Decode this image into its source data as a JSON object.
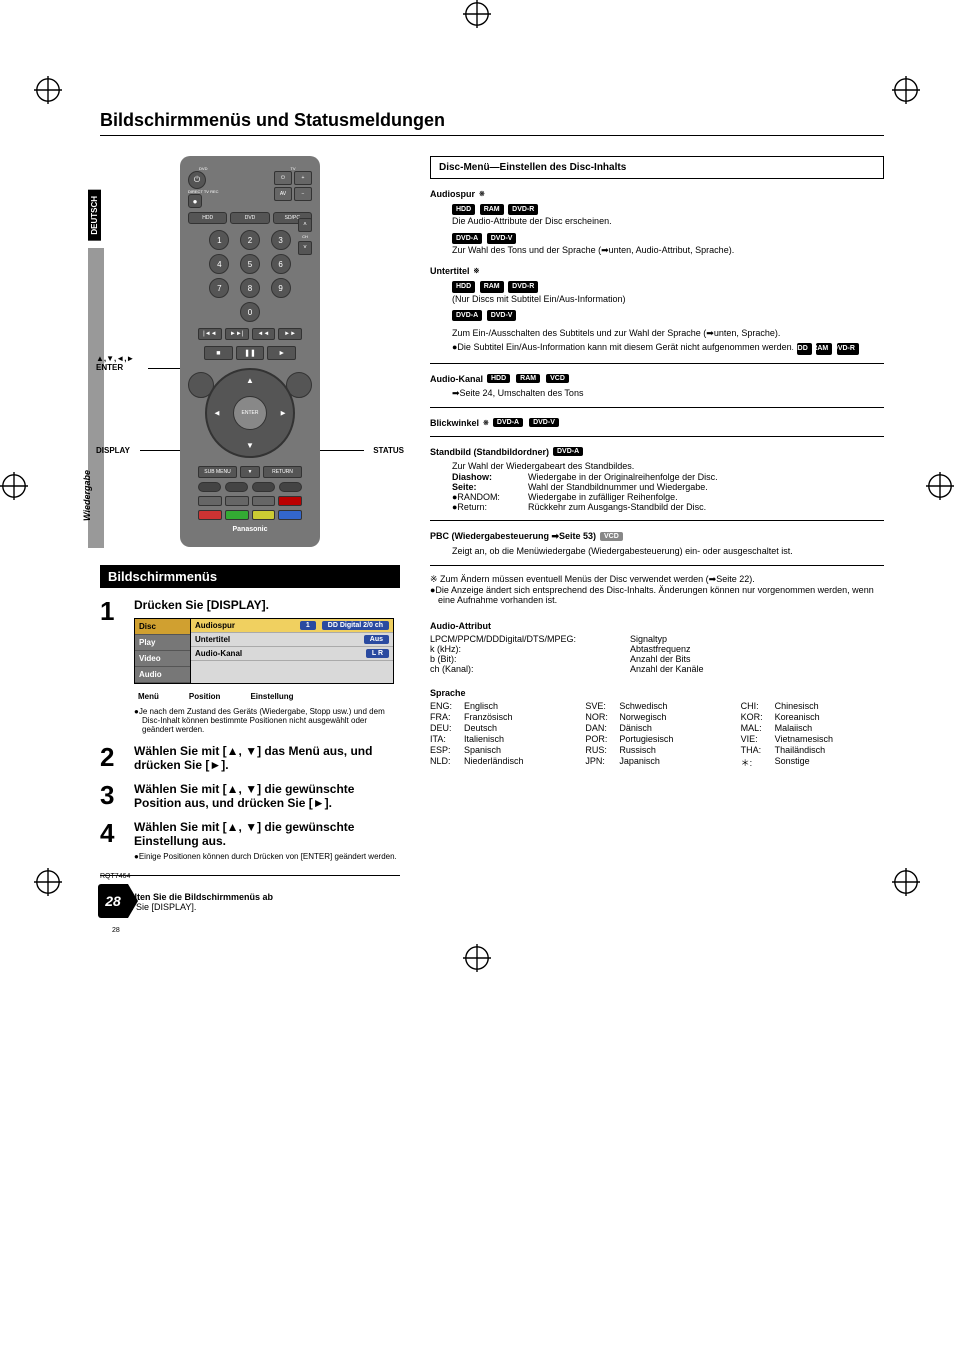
{
  "page": {
    "title": "Bildschirmmenüs und Statusmeldungen",
    "side_tab": "DEUTSCH",
    "side_label": "Wiedergabe",
    "rqt": "RQT7464",
    "page_number": "28",
    "tiny_page_number": "28"
  },
  "remote": {
    "brand": "Panasonic",
    "labels": {
      "dvd": "DVD",
      "tv": "TV",
      "hdd": "HDD",
      "dvd_mode": "DVD",
      "sdpc": "SD/PC",
      "enter": "ENTER"
    },
    "callouts": {
      "arrows_enter": "▲,▼,◄,►\nENTER",
      "display": "DISPLAY",
      "status": "STATUS"
    }
  },
  "section_bar": "Bildschirmmenüs",
  "steps": [
    {
      "num": "1",
      "text": "Drücken Sie [DISPLAY].",
      "note": "●Je nach dem Zustand des Geräts (Wiedergabe, Stopp usw.) und dem Disc-Inhalt können bestimmte Positionen nicht ausgewählt oder geändert werden."
    },
    {
      "num": "2",
      "text": "Wählen Sie mit [▲, ▼] das Menü aus, und drücken Sie [►]."
    },
    {
      "num": "3",
      "text": "Wählen Sie mit [▲, ▼] die gewünschte Position aus, und drücken Sie [►]."
    },
    {
      "num": "4",
      "text": "Wählen Sie mit [▲, ▼] die gewünschte Einstellung aus.",
      "note": "●Einige Positionen können durch Drücken von [ENTER] geändert werden."
    }
  ],
  "osd": {
    "left_items": [
      "Disc",
      "Play",
      "Video",
      "Audio"
    ],
    "selected_left": 0,
    "rows": [
      {
        "label": "Audiospur",
        "val1": "1",
        "val2": "DD Digital  2/0 ch",
        "sel": true
      },
      {
        "label": "Untertitel",
        "val2": "Aus"
      },
      {
        "label": "Audio-Kanal",
        "val2": "L R"
      }
    ],
    "captions": [
      "Menü",
      "Position",
      "Einstellung"
    ]
  },
  "off_note": {
    "head": "So schalten Sie die Bildschirmmenüs ab",
    "body": "Drücken Sie [DISPLAY]."
  },
  "right": {
    "box_title": "Disc-Menü—Einstellen des Disc-Inhalts",
    "audiospur": {
      "title": "Audiospur",
      "badges1": [
        "HDD",
        "RAM",
        "DVD-R"
      ],
      "line1": "Die Audio-Attribute der Disc erscheinen.",
      "badges2": [
        "DVD-A",
        "DVD-V"
      ],
      "line2": "Zur Wahl des Tons und der Sprache (➡unten, Audio-Attribut, Sprache)."
    },
    "untertitel": {
      "title": "Untertitel",
      "badges1": [
        "HDD",
        "RAM",
        "DVD-R"
      ],
      "line1": "(Nur Discs mit Subtitel Ein/Aus-Information)",
      "badges2": [
        "DVD-A",
        "DVD-V"
      ],
      "line2": "Zum Ein-/Ausschalten des Subtitels und zur Wahl der Sprache (➡unten, Sprache).",
      "line3": "●Die Subtitel Ein/Aus-Information kann mit diesem Gerät nicht aufgenommen werden.",
      "badges3": [
        "HDD",
        "RAM",
        "DVD-R"
      ]
    },
    "audiokanal": {
      "title": "Audio-Kanal",
      "badges": [
        "HDD",
        "RAM",
        "VCD"
      ],
      "line": "➡Seite 24, Umschalten des Tons"
    },
    "blickwinkel": {
      "title": "Blickwinkel",
      "badges": [
        "DVD-A",
        "DVD-V"
      ]
    },
    "standbild": {
      "title": "Standbild (Standbildordner)",
      "badges": [
        "DVD-A"
      ],
      "intro": "Zur Wahl der Wiedergabeart des Standbildes.",
      "rows": [
        {
          "k": "Diashow:",
          "v": "Wiedergabe in der Originalreihenfolge der Disc."
        },
        {
          "k": "Seite:",
          "v": "Wahl der Standbildnummer und Wiedergabe."
        },
        {
          "k": "●RANDOM:",
          "v": "Wiedergabe in zufälliger Reihenfolge."
        },
        {
          "k": "●Return:",
          "v": "Rückkehr zum Ausgangs-Standbild der Disc."
        }
      ]
    },
    "pbc": {
      "title": "PBC (Wiedergabesteuerung ➡Seite 53)",
      "badges": [
        "VCD"
      ],
      "line": "Zeigt an, ob die Menüwiedergabe (Wiedergabesteuerung) ein- oder ausgeschaltet ist."
    },
    "footnotes": [
      "※ Zum Ändern müssen eventuell Menüs der Disc verwendet werden (➡Seite 22).",
      "●Die Anzeige ändert sich entsprechend des Disc-Inhalts. Änderungen können nur vorgenommen werden, wenn eine Aufnahme vorhanden ist."
    ],
    "audio_attr": {
      "title": "Audio-Attribut",
      "rows": [
        {
          "a": "LPCM/PPCM/DDDigital/DTS/MPEG:",
          "b": "Signaltyp"
        },
        {
          "a": "k (kHz):",
          "b": "Abtastfrequenz"
        },
        {
          "a": "b (Bit):",
          "b": "Anzahl der Bits"
        },
        {
          "a": "ch (Kanal):",
          "b": "Anzahl der Kanäle"
        }
      ]
    },
    "sprache": {
      "title": "Sprache",
      "items": [
        {
          "c": "ENG:",
          "n": "Englisch"
        },
        {
          "c": "SVE:",
          "n": "Schwedisch"
        },
        {
          "c": "CHI:",
          "n": "Chinesisch"
        },
        {
          "c": "FRA:",
          "n": "Französisch"
        },
        {
          "c": "NOR:",
          "n": "Norwegisch"
        },
        {
          "c": "KOR:",
          "n": "Koreanisch"
        },
        {
          "c": "DEU:",
          "n": "Deutsch"
        },
        {
          "c": "DAN:",
          "n": "Dänisch"
        },
        {
          "c": "MAL:",
          "n": "Malaiisch"
        },
        {
          "c": "ITA:",
          "n": "Italienisch"
        },
        {
          "c": "POR:",
          "n": "Portugiesisch"
        },
        {
          "c": "VIE:",
          "n": "Vietnamesisch"
        },
        {
          "c": "ESP:",
          "n": "Spanisch"
        },
        {
          "c": "RUS:",
          "n": "Russisch"
        },
        {
          "c": "THA:",
          "n": "Thailändisch"
        },
        {
          "c": "NLD:",
          "n": "Niederländisch"
        },
        {
          "c": "JPN:",
          "n": "Japanisch"
        },
        {
          "c": "＊:",
          "n": "Sonstige"
        }
      ]
    }
  }
}
